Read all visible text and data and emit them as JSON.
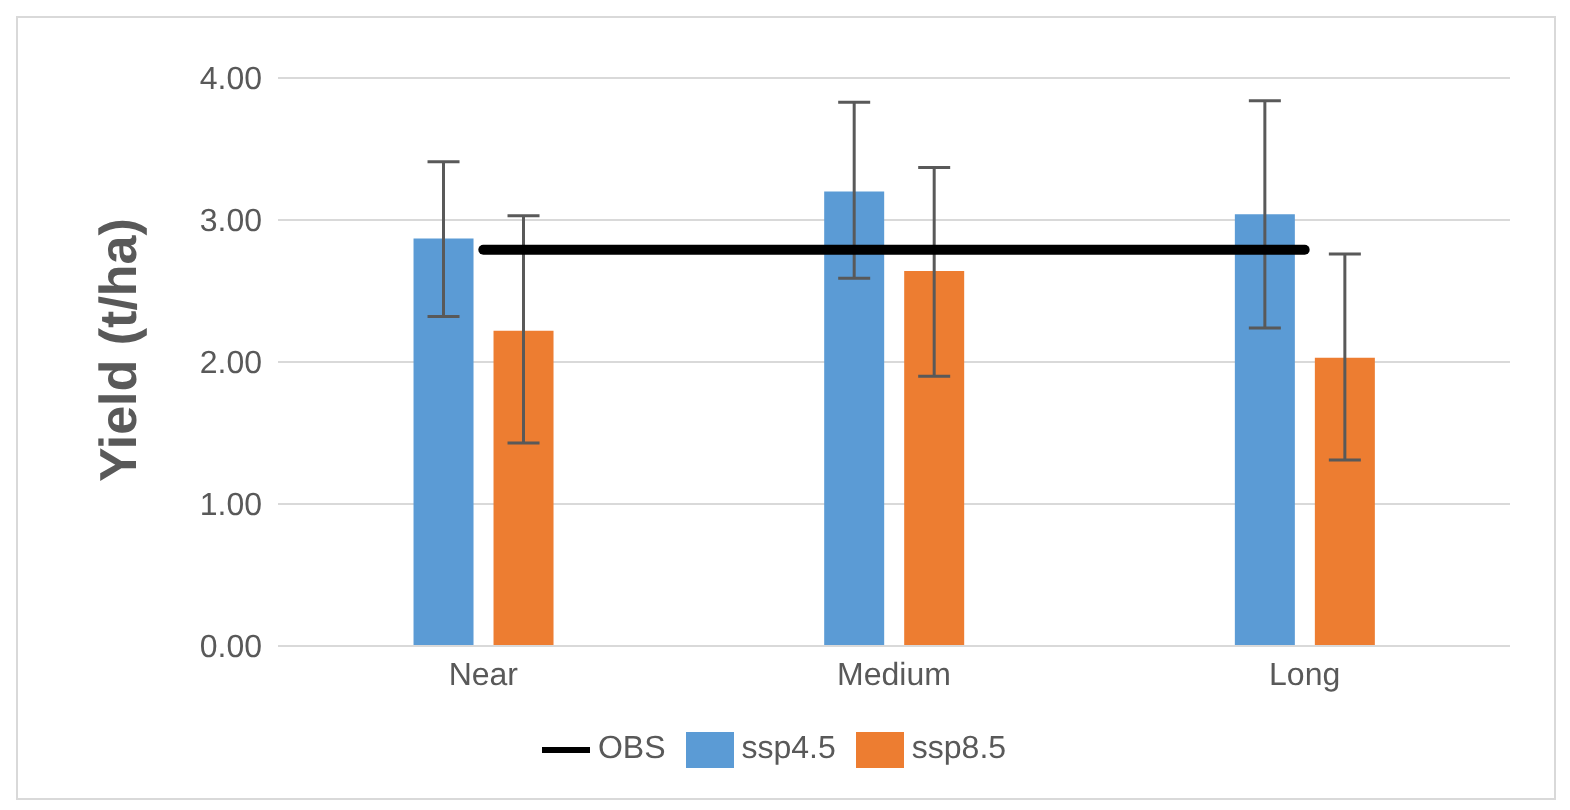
{
  "chart_data": {
    "type": "bar",
    "ylabel": "Yield (t/ha)",
    "categories": [
      "Near",
      "Medium",
      "Long"
    ],
    "series": [
      {
        "name": "ssp4.5",
        "color": "#5b9bd5",
        "values": [
          2.87,
          3.2,
          3.04
        ],
        "errors": [
          [
            2.32,
            3.41
          ],
          [
            2.59,
            3.83
          ],
          [
            2.24,
            3.84
          ]
        ]
      },
      {
        "name": "ssp8.5",
        "color": "#ed7d31",
        "values": [
          2.22,
          2.64,
          2.03
        ],
        "errors": [
          [
            1.43,
            3.03
          ],
          [
            1.9,
            3.37
          ],
          [
            1.31,
            2.76
          ]
        ]
      },
      {
        "name": "OBS",
        "type": "line",
        "color": "#000000",
        "values": [
          2.79,
          2.79,
          2.79
        ]
      }
    ],
    "ylim": [
      0,
      4
    ],
    "yticks": [
      {
        "value": 0,
        "label": "0.00"
      },
      {
        "value": 1,
        "label": "1.00"
      },
      {
        "value": 2,
        "label": "2.00"
      },
      {
        "value": 3,
        "label": "3.00"
      },
      {
        "value": 4,
        "label": "4.00"
      }
    ],
    "grid": "y",
    "legend": "bottom",
    "marker": "none",
    "line_style": "solid"
  }
}
